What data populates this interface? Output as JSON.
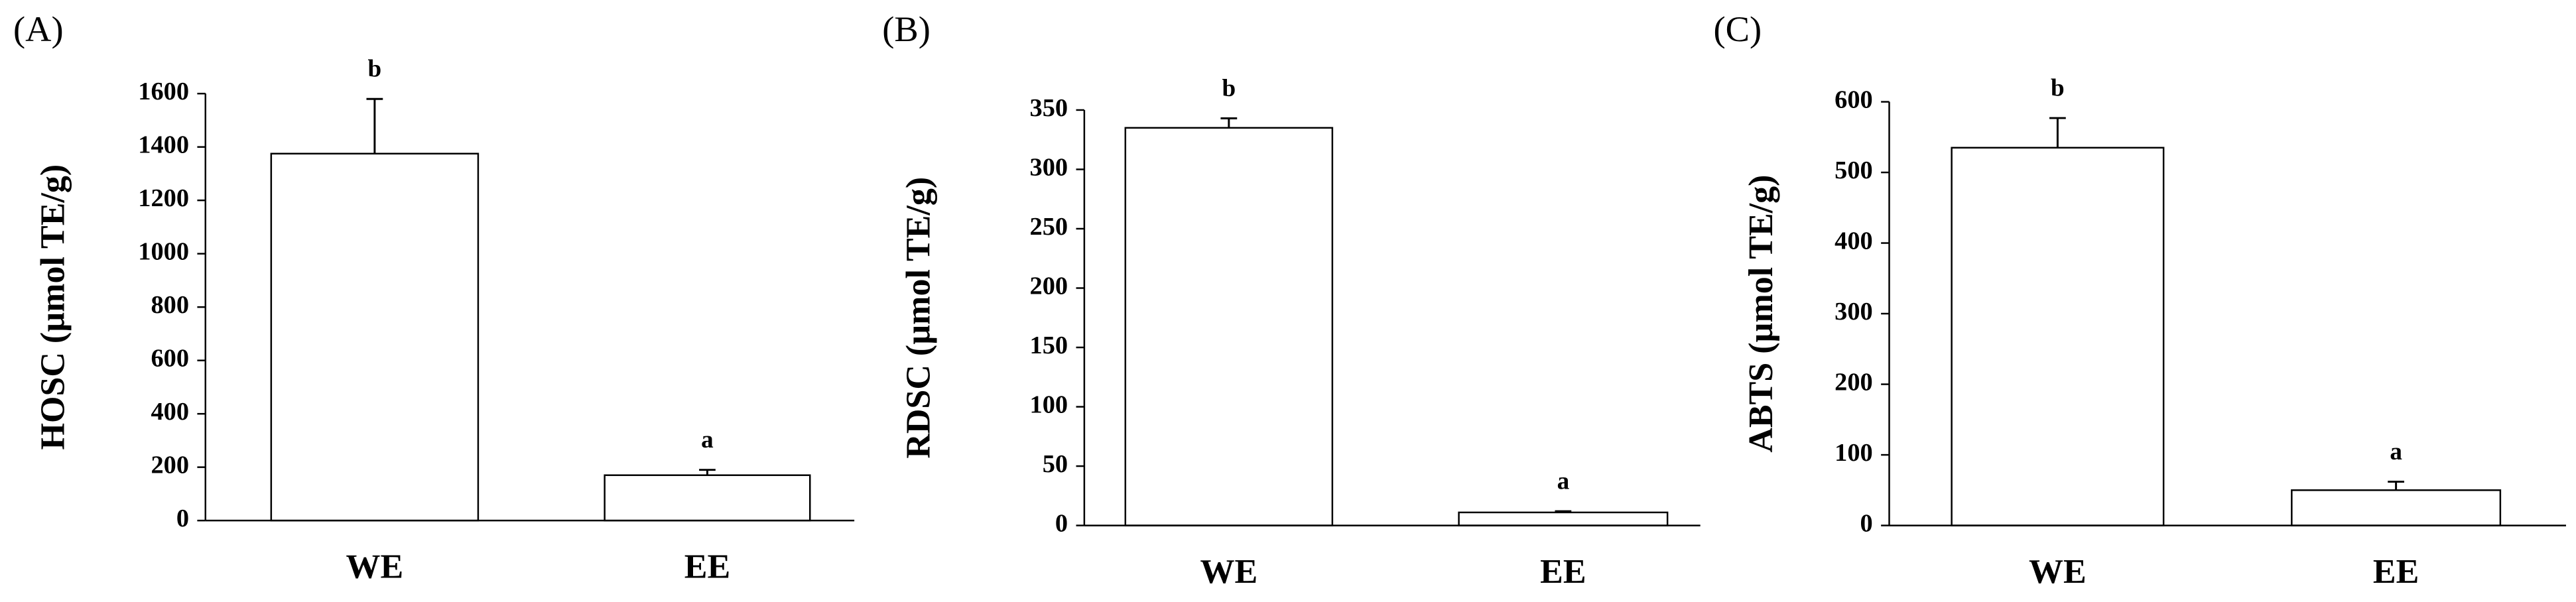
{
  "chart_data": [
    {
      "type": "bar",
      "panel_label": "(A)",
      "ylabel": "HOSC (µmol TE/g)",
      "categories": [
        "WE",
        "EE"
      ],
      "values": [
        1375,
        170
      ],
      "errors": [
        205,
        20
      ],
      "annotations": [
        "b",
        "a"
      ],
      "color": "#ffffff",
      "ylim": [
        0,
        1600
      ],
      "yticks": [
        0,
        200,
        400,
        600,
        800,
        1000,
        1200,
        1400,
        1600
      ]
    },
    {
      "type": "bar",
      "panel_label": "(B)",
      "ylabel": "RDSC (µmol TE/g)",
      "categories": [
        "WE",
        "EE"
      ],
      "values": [
        335,
        11
      ],
      "errors": [
        8,
        1
      ],
      "annotations": [
        "b",
        "a"
      ],
      "color": "#ffffff",
      "ylim": [
        0,
        350
      ],
      "yticks": [
        0,
        50,
        100,
        150,
        200,
        250,
        300,
        350
      ]
    },
    {
      "type": "bar",
      "panel_label": "(C)",
      "ylabel": "ABTS (µmol TE/g)",
      "categories": [
        "WE",
        "EE"
      ],
      "values": [
        535,
        50
      ],
      "errors": [
        42,
        12
      ],
      "annotations": [
        "b",
        "a"
      ],
      "color": "#ffffff",
      "ylim": [
        0,
        600
      ],
      "yticks": [
        0,
        100,
        200,
        300,
        400,
        500,
        600
      ]
    }
  ]
}
